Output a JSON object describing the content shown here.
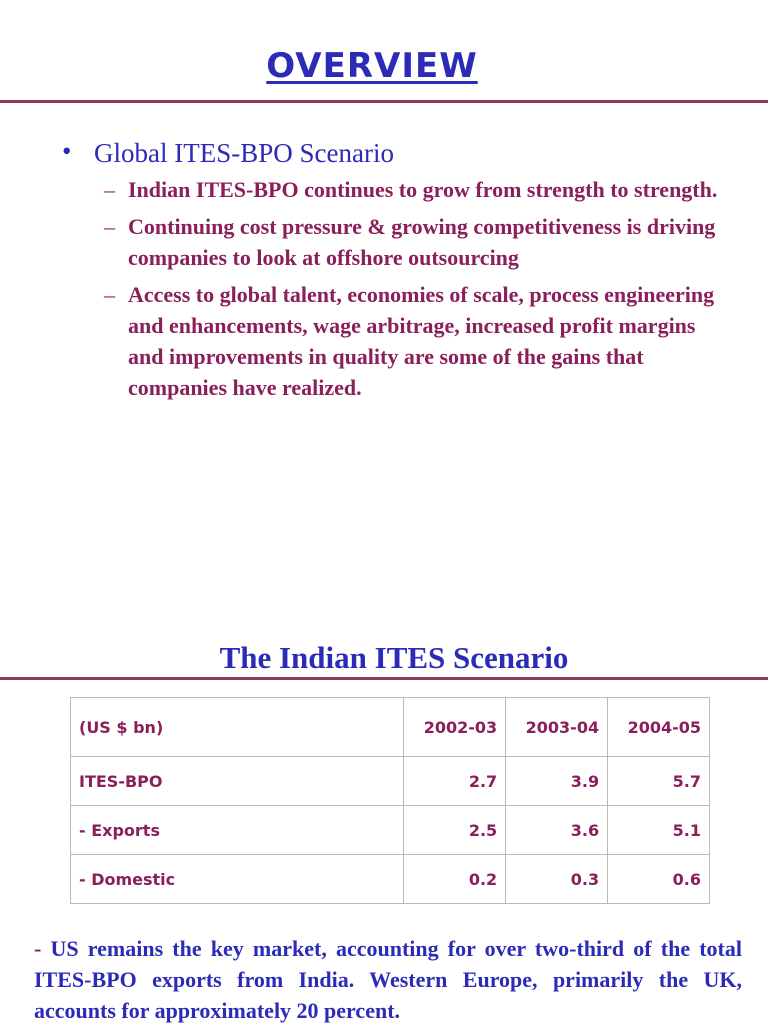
{
  "title": "OVERVIEW",
  "bullet": {
    "symbol": "•",
    "text": "Global ITES-BPO Scenario",
    "sub_dash": "–",
    "sub_items": [
      "Indian ITES-BPO continues to grow from strength to strength.",
      "Continuing cost pressure & growing competitiveness is driving companies to look at offshore outsourcing",
      "Access to global talent, economies of scale, process engineering and enhancements, wage arbitrage, increased profit margins and improvements in quality are some of the gains that companies have realized."
    ]
  },
  "section_title": "The Indian ITES Scenario",
  "table": {
    "header": [
      "(US $ bn)",
      "2002-03",
      "2003-04",
      "2004-05"
    ],
    "rows": [
      [
        "ITES-BPO",
        "2.7",
        "3.9",
        "5.7"
      ],
      [
        "- Exports",
        "2.5",
        "3.6",
        "5.1"
      ],
      [
        "- Domestic",
        "0.2",
        "0.3",
        "0.6"
      ]
    ]
  },
  "footer": {
    "dash": "-",
    "text": "US remains the key market, accounting for over two-third of the total ITES-BPO exports from India. Western Europe, primarily the UK, accounts for approximately 20 percent."
  },
  "colors": {
    "title_blue": "#2b2bb8",
    "text_maroon": "#8b1f5a",
    "rule": "#8b3a5c"
  }
}
